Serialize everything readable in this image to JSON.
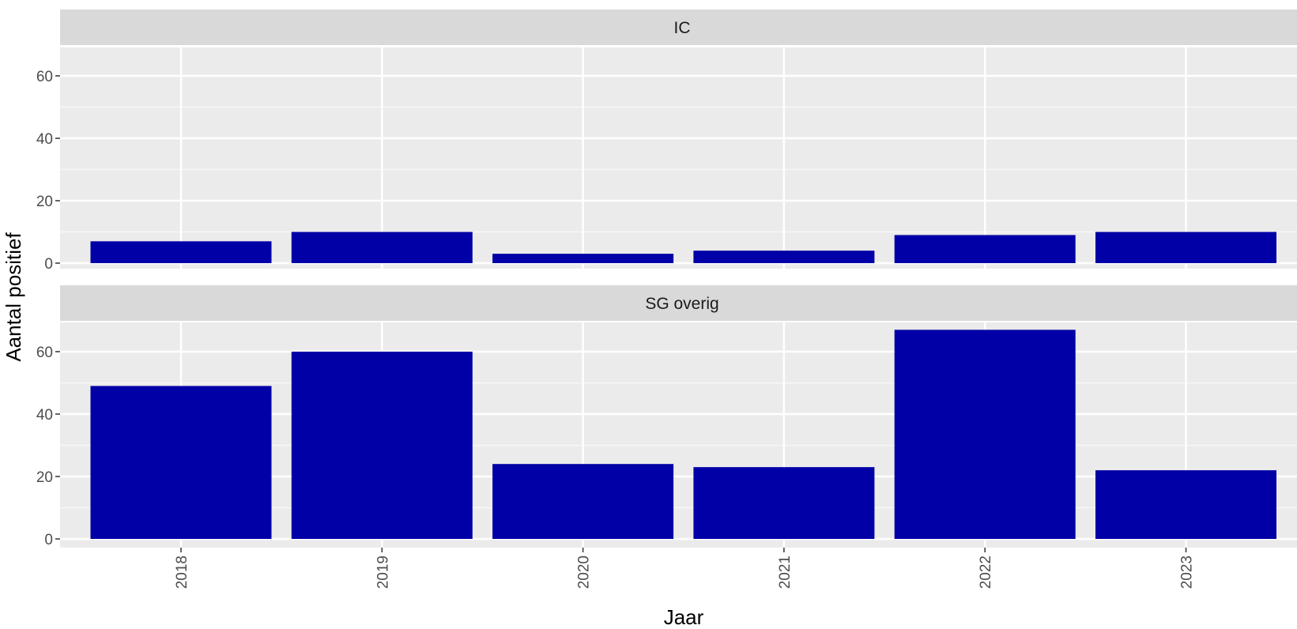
{
  "chart_data": {
    "type": "bar",
    "xlabel": "Jaar",
    "ylabel": "Aantal positief",
    "categories": [
      "2018",
      "2019",
      "2020",
      "2021",
      "2022",
      "2023"
    ],
    "ylim": [
      0,
      70
    ],
    "yticks": [
      "0",
      "20",
      "40",
      "60"
    ],
    "grid": true,
    "bar_color": "#0000A6",
    "facets": [
      {
        "name": "IC",
        "values": [
          7,
          10,
          3,
          4,
          9,
          10
        ]
      },
      {
        "name": "SG overig",
        "values": [
          49,
          60,
          24,
          23,
          67,
          22
        ]
      }
    ]
  }
}
